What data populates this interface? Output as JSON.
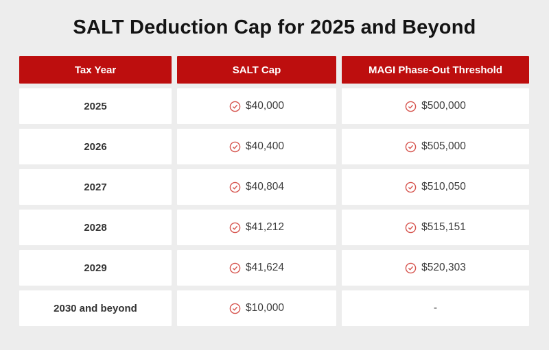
{
  "title": "SALT Deduction Cap for 2025 and Beyond",
  "chart_data": {
    "type": "table",
    "title": "SALT Deduction Cap for 2025 and Beyond",
    "columns": [
      "Tax Year",
      "SALT Cap",
      "MAGI Phase-Out Threshold"
    ],
    "rows": [
      [
        "2025",
        "$40,000",
        "$500,000"
      ],
      [
        "2026",
        "$40,400",
        "$505,000"
      ],
      [
        "2027",
        "$40,804",
        "$510,050"
      ],
      [
        "2028",
        "$41,212",
        "$515,151"
      ],
      [
        "2029",
        "$41,624",
        "$520,303"
      ],
      [
        "2030 and beyond",
        "$10,000",
        "-"
      ]
    ]
  },
  "icons": {
    "value_icon": "check-circle-icon"
  },
  "colors": {
    "background": "#ededed",
    "header_bg": "#bd0e0e",
    "header_text": "#ffffff",
    "cell_bg": "#ffffff",
    "icon_red": "#d6544e",
    "title_text": "#141414",
    "value_text": "#3d3d3d"
  }
}
